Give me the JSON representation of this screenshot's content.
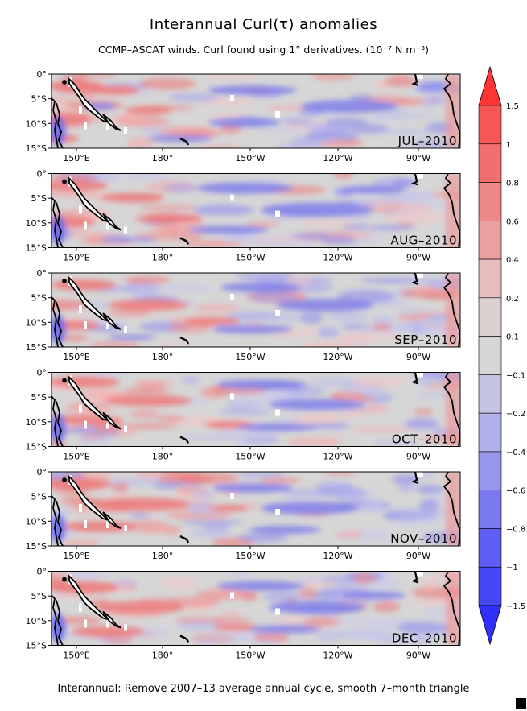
{
  "title": "Interannual Curl(τ) anomalies",
  "subtitle": "CCMP–ASCAT winds. Curl found using 1° derivatives. (10⁻⁷ N m⁻³)",
  "footer": "Interannual: Remove 2007–13 average annual cycle, smooth 7–month triangle",
  "lon_ticks": [
    "150°E",
    "180°",
    "150°W",
    "120°W",
    "90°W"
  ],
  "lat_ticks": [
    "0°",
    "5°S",
    "10°S",
    "15°S"
  ],
  "panels": [
    {
      "month": "JUL–2010",
      "pattern": 0
    },
    {
      "month": "AUG–2010",
      "pattern": 1
    },
    {
      "month": "SEP–2010",
      "pattern": 2
    },
    {
      "month": "OCT–2010",
      "pattern": 3
    },
    {
      "month": "NOV–2010",
      "pattern": 4
    },
    {
      "month": "DEC–2010",
      "pattern": 5
    }
  ],
  "colorbar": {
    "labels": [
      "1.5",
      "1",
      "0.8",
      "0.6",
      "0.4",
      "0.2",
      "0.1",
      "−0.1",
      "−0.2",
      "−0.4",
      "−0.6",
      "−0.8",
      "−1",
      "−1.5"
    ],
    "colors": [
      "#ff3434",
      "#f55757",
      "#f26f6f",
      "#ee8888",
      "#eba0a0",
      "#e6bcbc",
      "#dcd0d0",
      "#d6d6d6",
      "#c4c4e4",
      "#b0b0ea",
      "#9696ec",
      "#7a7aee",
      "#5e5ef2",
      "#4646f6",
      "#3030ff"
    ]
  }
}
